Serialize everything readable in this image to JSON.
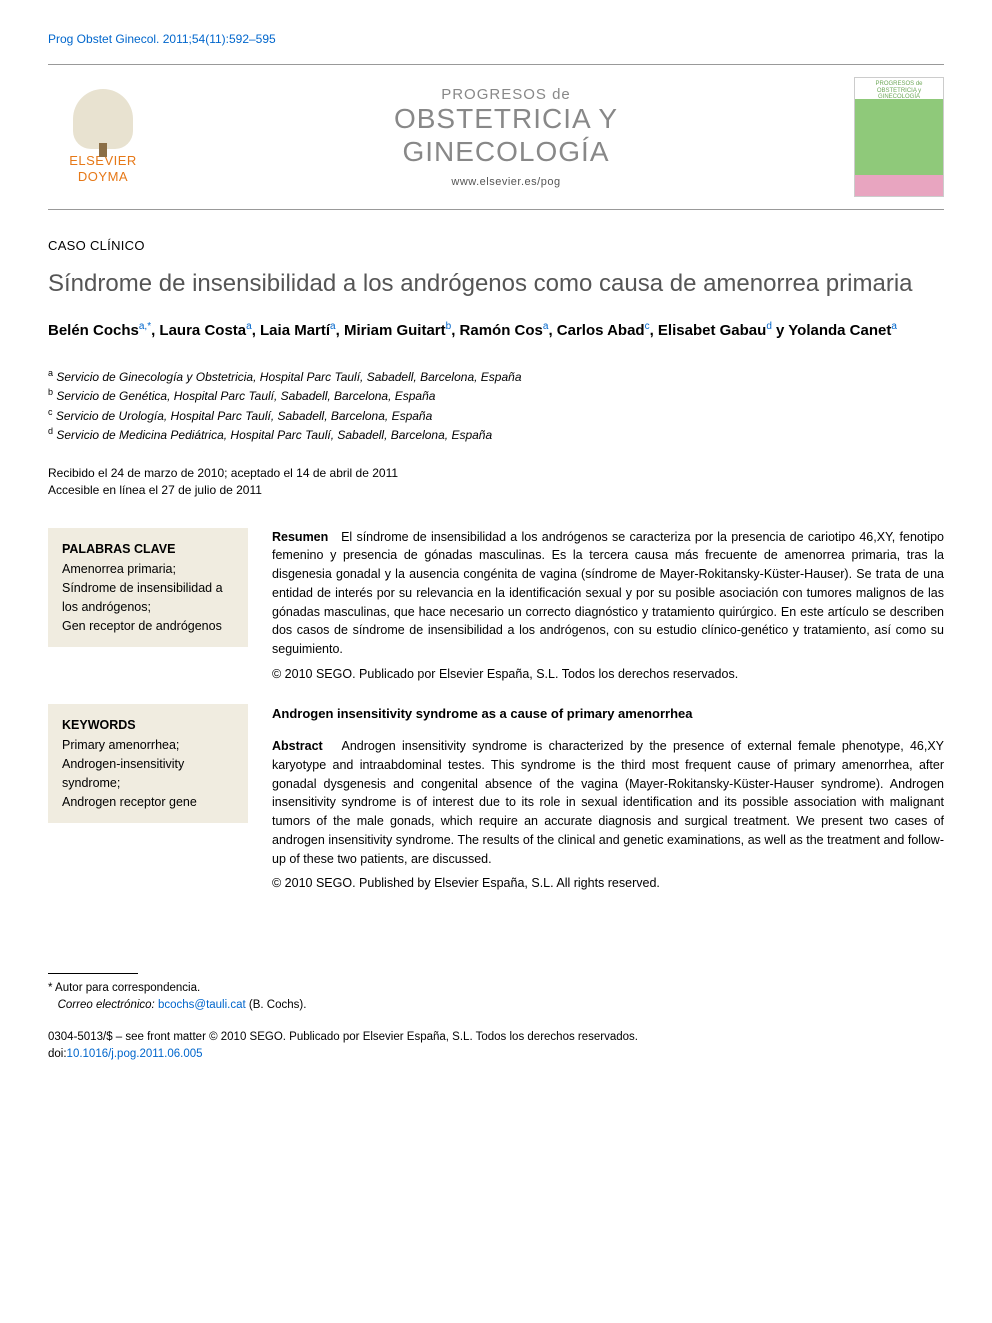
{
  "citation": "Prog Obstet Ginecol. 2011;54(11):592–595",
  "publisher": {
    "name_line1": "ELSEVIER",
    "name_line2": "DOYMA"
  },
  "journal": {
    "pre": "PROGRESOS de",
    "title_line1": "OBSTETRICIA Y",
    "title_line2": "GINECOLOGÍA",
    "url": "www.elsevier.es/pog",
    "cover_label": "PROGRESOS de OBSTETRICIA y GINECOLOGÍA"
  },
  "section_type": "CASO CLÍNICO",
  "article_title": "Síndrome de insensibilidad a los andrógenos como causa de amenorrea primaria",
  "authors_html": "Belén Cochs<sup>a,*</sup>, Laura Costa<sup>a</sup>, Laia Martí<sup>a</sup>, Miriam Guitart<sup>b</sup>, Ramón Cos<sup>a</sup>, Carlos Abad<sup>c</sup>, Elisabet Gabau<sup>d</sup> y Yolanda Canet<sup>a</sup>",
  "affiliations": [
    {
      "mark": "a",
      "text": "Servicio de Ginecología y Obstetricia, Hospital Parc Taulí, Sabadell, Barcelona, España"
    },
    {
      "mark": "b",
      "text": "Servicio de Genética, Hospital Parc Taulí, Sabadell, Barcelona, España"
    },
    {
      "mark": "c",
      "text": "Servicio de Urología, Hospital Parc Taulí, Sabadell, Barcelona, España"
    },
    {
      "mark": "d",
      "text": "Servicio de Medicina Pediátrica, Hospital Parc Taulí, Sabadell, Barcelona, España"
    }
  ],
  "dates": {
    "received_accepted": "Recibido el 24 de marzo de 2010; aceptado el 14 de abril de 2011",
    "online": "Accesible en línea el 27 de julio de 2011"
  },
  "spanish": {
    "kw_head": "PALABRAS CLAVE",
    "keywords": "Amenorrea primaria;\nSíndrome de insensibilidad a los andrógenos;\nGen receptor de andrógenos",
    "ab_head": "Resumen",
    "abstract": "El síndrome de insensibilidad a los andrógenos se caracteriza por la presencia de cariotipo 46,XY, fenotipo femenino y presencia de gónadas masculinas. Es la tercera causa más frecuente de amenorrea primaria, tras la disgenesia gonadal y la ausencia congénita de vagina (síndrome de Mayer-Rokitansky-Küster-Hauser). Se trata de una entidad de interés por su relevancia en la identificación sexual y por su posible asociación con tumores malignos de las gónadas masculinas, que hace necesario un correcto diagnóstico y tratamiento quirúrgico. En este artículo se describen dos casos de síndrome de insensibilidad a los andrógenos, con su estudio clínico-genético y tratamiento, así como su seguimiento.",
    "copyright": "© 2010 SEGO. Publicado por Elsevier España, S.L. Todos los derechos reservados."
  },
  "english": {
    "kw_head": "KEYWORDS",
    "keywords": "Primary amenorrhea;\nAndrogen-insensitivity syndrome;\nAndrogen receptor gene",
    "title": "Androgen insensitivity syndrome as a cause of primary amenorrhea",
    "ab_head": "Abstract",
    "abstract": "Androgen insensitivity syndrome is characterized by the presence of external female phenotype, 46,XY karyotype and intraabdominal testes. This syndrome is the third most frequent cause of primary amenorrhea, after gonadal dysgenesis and congenital absence of the vagina (Mayer-Rokitansky-Küster-Hauser syndrome). Androgen insensitivity syndrome is of interest due to its role in sexual identification and its possible association with malignant tumors of the male gonads, which require an accurate diagnosis and surgical treatment. We present two cases of androgen insensitivity syndrome. The results of the clinical and genetic examinations, as well as the treatment and follow-up of these two patients, are discussed.",
    "copyright": "© 2010 SEGO. Published by Elsevier España, S.L. All rights reserved."
  },
  "correspondence": {
    "mark": "*",
    "label": "Autor para correspondencia.",
    "email_label": "Correo electrónico:",
    "email": "bcochs@tauli.cat",
    "person": "(B. Cochs)."
  },
  "front_matter": {
    "line": "0304-5013/$ – see front matter © 2010 SEGO. Publicado por Elsevier España, S.L. Todos los derechos reservados.",
    "doi_label": "doi:",
    "doi": "10.1016/j.pog.2011.06.005"
  },
  "colors": {
    "link": "#0066cc",
    "accent_orange": "#e67817",
    "title_gray": "#555555",
    "journal_gray": "#888888",
    "kw_bg": "#f0ece0"
  }
}
